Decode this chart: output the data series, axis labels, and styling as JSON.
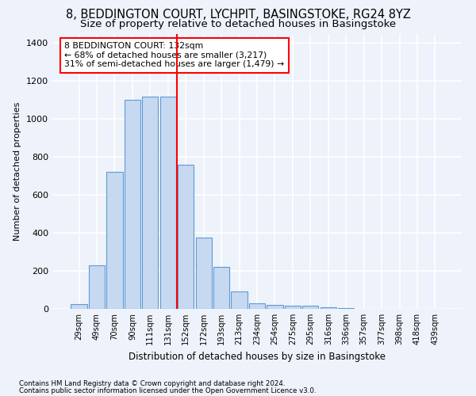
{
  "title1": "8, BEDDINGTON COURT, LYCHPIT, BASINGSTOKE, RG24 8YZ",
  "title2": "Size of property relative to detached houses in Basingstoke",
  "xlabel": "Distribution of detached houses by size in Basingstoke",
  "ylabel": "Number of detached properties",
  "categories": [
    "29sqm",
    "49sqm",
    "70sqm",
    "90sqm",
    "111sqm",
    "131sqm",
    "152sqm",
    "172sqm",
    "193sqm",
    "213sqm",
    "234sqm",
    "254sqm",
    "275sqm",
    "295sqm",
    "316sqm",
    "336sqm",
    "357sqm",
    "377sqm",
    "398sqm",
    "418sqm",
    "439sqm"
  ],
  "values": [
    25,
    230,
    720,
    1100,
    1120,
    1120,
    760,
    375,
    220,
    90,
    30,
    20,
    15,
    15,
    10,
    5,
    0,
    0,
    0,
    0,
    0
  ],
  "bar_color": "#c6d9f0",
  "bar_edge_color": "#5b9bd5",
  "red_line_index": 5.5,
  "annotation_text": "8 BEDDINGTON COURT: 132sqm\n← 68% of detached houses are smaller (3,217)\n31% of semi-detached houses are larger (1,479) →",
  "annotation_box_color": "white",
  "annotation_box_edge": "red",
  "footnote1": "Contains HM Land Registry data © Crown copyright and database right 2024.",
  "footnote2": "Contains public sector information licensed under the Open Government Licence v3.0.",
  "ylim": [
    0,
    1450
  ],
  "yticks": [
    0,
    200,
    400,
    600,
    800,
    1000,
    1200,
    1400
  ],
  "bg_color": "#eef2fa",
  "grid_color": "white",
  "title1_fontsize": 10.5,
  "title2_fontsize": 9.5
}
